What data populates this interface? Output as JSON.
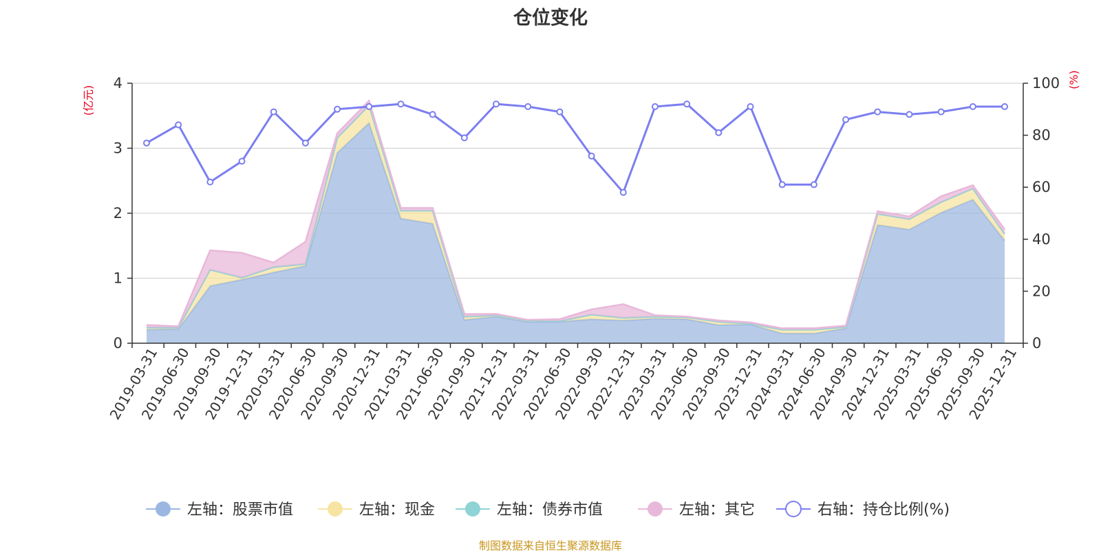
{
  "title": "仓位变化",
  "source_note": "制图数据来自恒生聚源数据库",
  "colors": {
    "stock": "#9bb7e1",
    "cash": "#f7e4a2",
    "bond": "#8fd3d6",
    "other": "#e8b8da",
    "ratio": "#7b7ef0",
    "axis_unit": "#e8001c"
  },
  "chart_data": {
    "type": "area",
    "title": "仓位变化",
    "left_axis": {
      "unit": "(亿元)",
      "ylim": [
        0,
        4
      ],
      "ticks": [
        "0",
        "1",
        "2",
        "3",
        "4"
      ]
    },
    "right_axis": {
      "unit": "(%)",
      "ylim": [
        0,
        100
      ],
      "ticks": [
        "0",
        "20",
        "40",
        "60",
        "80",
        "100"
      ]
    },
    "grid": true,
    "legend_position": "bottom",
    "x": [
      "2019-03-31",
      "2019-06-30",
      "2019-09-30",
      "2019-12-31",
      "2020-03-31",
      "2020-06-30",
      "2020-09-30",
      "2020-12-31",
      "2021-03-31",
      "2021-06-30",
      "2021-09-30",
      "2021-12-31",
      "2022-03-31",
      "2022-06-30",
      "2022-09-30",
      "2022-12-31",
      "2023-03-31",
      "2023-06-30",
      "2023-09-30",
      "2023-12-31",
      "2024-03-31",
      "2024-06-30",
      "2024-09-30",
      "2024-12-31",
      "2025-03-31",
      "2025-06-30",
      "2025-09-30",
      "2025-12-31"
    ],
    "stacked_series": [
      {
        "name": "左轴：股票市值",
        "axis": "left",
        "values": [
          0.21,
          0.22,
          0.88,
          0.98,
          1.09,
          1.19,
          2.93,
          3.39,
          1.92,
          1.84,
          0.36,
          0.41,
          0.33,
          0.33,
          0.37,
          0.35,
          0.38,
          0.37,
          0.28,
          0.29,
          0.15,
          0.15,
          0.23,
          1.82,
          1.75,
          2.01,
          2.21,
          1.58
        ]
      },
      {
        "name": "左轴：现金",
        "axis": "left",
        "values": [
          0.03,
          0.02,
          0.25,
          0.03,
          0.08,
          0.03,
          0.23,
          0.27,
          0.12,
          0.2,
          0.05,
          0.02,
          0.02,
          0.01,
          0.07,
          0.04,
          0.03,
          0.03,
          0.05,
          0.01,
          0.06,
          0.06,
          0.02,
          0.17,
          0.16,
          0.16,
          0.17,
          0.1
        ]
      },
      {
        "name": "左轴：债券市值",
        "axis": "left",
        "values": [
          0,
          0,
          0,
          0,
          0,
          0,
          0,
          0,
          0,
          0,
          0,
          0,
          0,
          0,
          0,
          0,
          0,
          0,
          0,
          0,
          0,
          0,
          0,
          0,
          0,
          0,
          0,
          0
        ]
      },
      {
        "name": "左轴：其它",
        "axis": "left",
        "values": [
          0.04,
          0.02,
          0.3,
          0.38,
          0.07,
          0.34,
          0.07,
          0.07,
          0.04,
          0.04,
          0.04,
          0.02,
          0.01,
          0.03,
          0.08,
          0.21,
          0.02,
          0.01,
          0.02,
          0.02,
          0.02,
          0.02,
          0.02,
          0.04,
          0.04,
          0.09,
          0.05,
          0.07
        ]
      }
    ],
    "line_series": {
      "name": "右轴：持仓比例(%)",
      "axis": "right",
      "values": [
        77,
        84,
        62,
        70,
        89,
        77,
        90,
        91,
        92,
        88,
        79,
        92,
        91,
        89,
        72,
        58,
        91,
        92,
        81,
        91,
        61,
        61,
        86,
        89,
        88,
        89,
        91,
        91
      ]
    }
  }
}
